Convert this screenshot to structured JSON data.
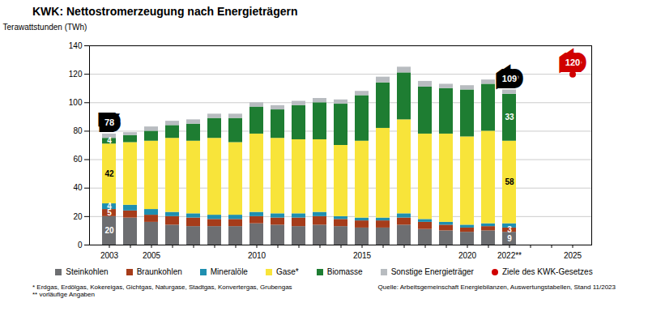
{
  "chart_data": {
    "type": "bar",
    "stacked": true,
    "title": "KWK: Nettostromerzeugung nach Energieträgern",
    "y_label": "Terawattstunden (TWh)",
    "categories": [
      "2003",
      null,
      "2005",
      null,
      null,
      null,
      null,
      "2010",
      null,
      null,
      null,
      null,
      "2015",
      null,
      null,
      null,
      null,
      "2020",
      null,
      "2022**",
      null,
      null,
      "2025"
    ],
    "ylim": [
      0,
      140
    ],
    "yticks": [
      0,
      20,
      40,
      60,
      80,
      100,
      120,
      140
    ],
    "grid": true,
    "legend": "bottom",
    "data_labels": true,
    "series": [
      {
        "name": "Steinkohlen",
        "color": "#6d6e71",
        "values": [
          20,
          19,
          16,
          14,
          13,
          13,
          13,
          15,
          14,
          13,
          14,
          13,
          12,
          12,
          14,
          11,
          10,
          9,
          10,
          9,
          null,
          null,
          null
        ],
        "value_labels": [
          "20",
          null,
          null,
          null,
          null,
          null,
          null,
          null,
          null,
          null,
          null,
          null,
          null,
          null,
          null,
          null,
          null,
          null,
          null,
          "9",
          null,
          null,
          null
        ]
      },
      {
        "name": "Braunkohlen",
        "color": "#a63c1a",
        "values": [
          5,
          5,
          5,
          6,
          6,
          5,
          5,
          5,
          5,
          6,
          6,
          5,
          5,
          5,
          5,
          5,
          4,
          3,
          3,
          3,
          null,
          null,
          null
        ],
        "value_labels": [
          "5",
          null,
          null,
          null,
          null,
          null,
          null,
          null,
          null,
          null,
          null,
          null,
          null,
          null,
          null,
          null,
          null,
          null,
          null,
          "3",
          null,
          null,
          null
        ]
      },
      {
        "name": "Mineralöle",
        "color": "#1f8fb0",
        "values": [
          4,
          4,
          4,
          3,
          3,
          3,
          3,
          3,
          3,
          3,
          3,
          2,
          2,
          2,
          3,
          2,
          2,
          2,
          2,
          3,
          null,
          null,
          null
        ],
        "value_labels": [
          "4",
          null,
          null,
          null,
          null,
          null,
          null,
          null,
          null,
          null,
          null,
          null,
          null,
          null,
          null,
          null,
          null,
          null,
          null,
          null,
          null,
          null,
          null
        ]
      },
      {
        "name": "Gase*",
        "color": "#f8e43a",
        "values": [
          42,
          44,
          48,
          52,
          51,
          54,
          51,
          55,
          53,
          52,
          51,
          50,
          54,
          63,
          66,
          60,
          62,
          62,
          65,
          58,
          null,
          null,
          null
        ],
        "value_labels": [
          "42",
          null,
          null,
          null,
          null,
          null,
          null,
          null,
          null,
          null,
          null,
          null,
          null,
          null,
          null,
          null,
          null,
          null,
          null,
          "58",
          null,
          null,
          null
        ]
      },
      {
        "name": "Biomasse",
        "color": "#1e7d32",
        "values": [
          4,
          5,
          7,
          9,
          12,
          14,
          17,
          19,
          20,
          24,
          26,
          29,
          32,
          32,
          33,
          33,
          32,
          33,
          33,
          33,
          null,
          null,
          null
        ],
        "value_labels": [
          "4",
          null,
          null,
          null,
          null,
          null,
          null,
          null,
          null,
          null,
          null,
          null,
          null,
          null,
          null,
          null,
          null,
          null,
          null,
          "33",
          null,
          null,
          null
        ]
      },
      {
        "name": "Sonstige Energieträger",
        "color": "#b8bcc0",
        "values": [
          3,
          2,
          3,
          3,
          3,
          3,
          3,
          3,
          3,
          3,
          3,
          3,
          3,
          4,
          4,
          4,
          3,
          3,
          3,
          3,
          null,
          null,
          null
        ]
      },
      {
        "name": "Ziele des KWK-Gesetzes",
        "type": "scatter",
        "marker": "circle",
        "color": "#d00000",
        "values": [
          null,
          null,
          null,
          null,
          null,
          null,
          null,
          null,
          null,
          null,
          null,
          null,
          null,
          null,
          null,
          null,
          null,
          null,
          null,
          null,
          null,
          null,
          120
        ],
        "value_labels": [
          null,
          null,
          null,
          null,
          null,
          null,
          null,
          null,
          null,
          null,
          null,
          null,
          null,
          null,
          null,
          null,
          null,
          null,
          null,
          null,
          null,
          null,
          "120"
        ]
      }
    ],
    "totals": [
      {
        "category": "2003",
        "value": 78
      },
      {
        "category": "2022**",
        "value": 109
      }
    ],
    "footnotes": [
      "* Erdgas, Erdölgas, Kokereigas, Gichtgas, Naturgase, Stadtgas, Konvertergas, Grubengas",
      "** vorläufige Angaben"
    ],
    "source": "Quelle: Arbeitsgemeinschaft Energiebilanzen, Auswertungstabellen, Stand 11/2023"
  }
}
